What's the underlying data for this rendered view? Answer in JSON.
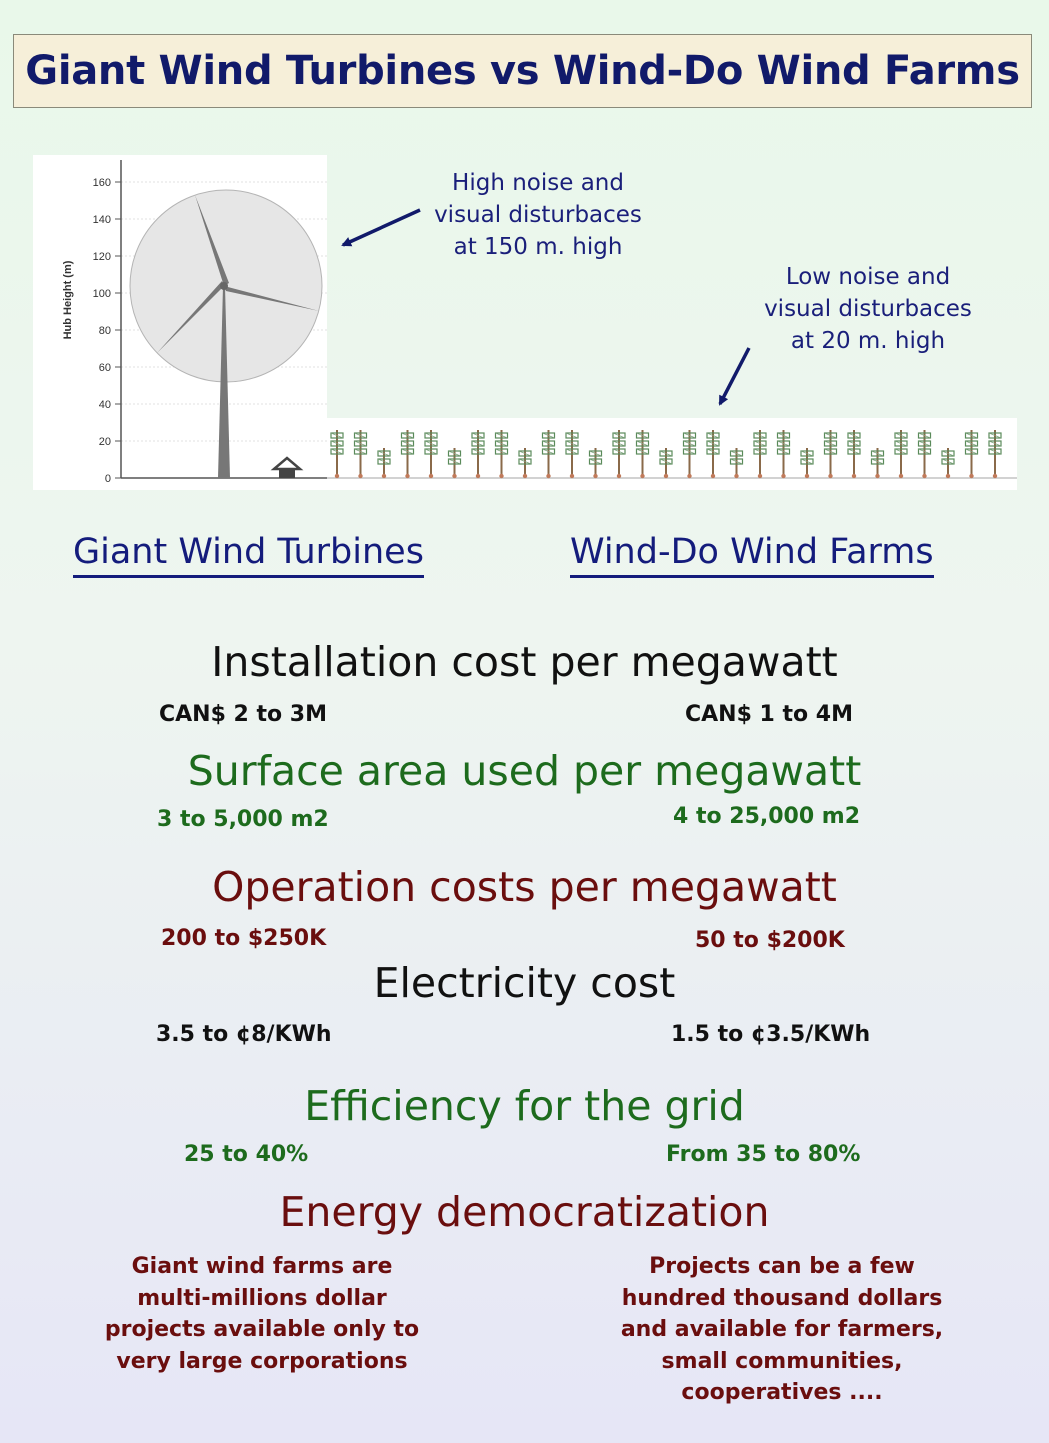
{
  "title": "Giant Wind Turbines vs Wind-Do Wind Farms",
  "figure": {
    "y_axis_label": "Hub Height (m)",
    "y_ticks": [
      "160",
      "140",
      "120",
      "100",
      "80",
      "60",
      "40",
      "20",
      "0"
    ],
    "note_high": [
      "High noise and",
      "visual disturbaces",
      "at 150 m. high"
    ],
    "note_low": [
      "Low noise and",
      "visual disturbaces",
      "at 20 m. high"
    ]
  },
  "columns": {
    "left": "Giant Wind Turbines",
    "right": "Wind-Do Wind Farms"
  },
  "sections": [
    {
      "heading": "Installation cost per megawatt",
      "left": "CAN$ 2 to  3M",
      "right": "CAN$ 1 to 4M"
    },
    {
      "heading": "Surface area used per megawatt",
      "left": "3 to 5,000 m2",
      "right": "4 to 25,000 m2"
    },
    {
      "heading": "Operation costs per megawatt",
      "left": "200 to $250K",
      "right": "50 to $200K"
    },
    {
      "heading": "Electricity cost",
      "left": "3.5 to ¢8/KWh",
      "right": "1.5 to ¢3.5/KWh"
    },
    {
      "heading": "Efficiency for the grid",
      "left": "25 to 40%",
      "right": "From 35 to 80%"
    },
    {
      "heading": "Energy democratization",
      "left_lines": [
        "Giant wind farms are",
        "multi-millions dollar",
        "projects available only to",
        "very large corporations"
      ],
      "right_lines": [
        "Projects can be a few",
        "hundred thousand dollars",
        "and available for farmers,",
        "small communities,",
        "cooperatives ...."
      ]
    }
  ],
  "colors": {
    "navy": "#141c7c",
    "green": "#1d6b1d",
    "maroon": "#6a0e0e",
    "title_bg": "#f6efd9"
  }
}
